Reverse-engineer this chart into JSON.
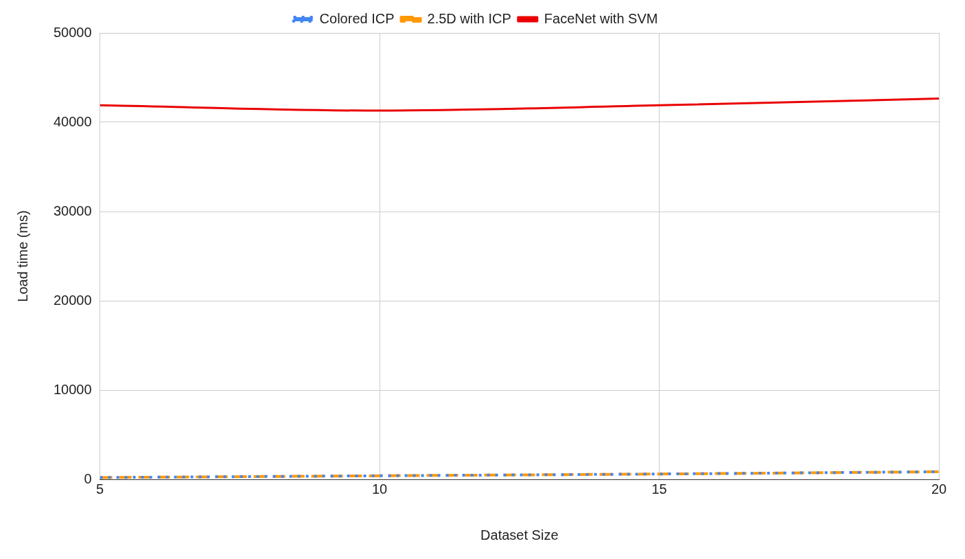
{
  "chart_data": {
    "type": "line",
    "xlabel": "Dataset Size",
    "ylabel": "Load time (ms)",
    "x": [
      5,
      10,
      15,
      20
    ],
    "xlim": [
      5,
      20
    ],
    "xticks": [
      5,
      10,
      15,
      20
    ],
    "ylim": [
      0,
      50000
    ],
    "yticks": [
      0,
      10000,
      20000,
      30000,
      40000,
      50000
    ],
    "grid": true,
    "legend": "top",
    "marker": "none",
    "series": [
      {
        "name": "Colored ICP",
        "color": "#4285f4",
        "line_style": "dotted",
        "values": [
          200,
          400,
          600,
          850
        ]
      },
      {
        "name": "2.5D with ICP",
        "color": "#ff9900",
        "line_style": "dashed",
        "values": [
          200,
          400,
          600,
          850
        ]
      },
      {
        "name": "FaceNet with SVM",
        "color": "#ea0000",
        "line_style": "solid",
        "values": [
          41900,
          41300,
          41900,
          42650
        ]
      }
    ]
  }
}
